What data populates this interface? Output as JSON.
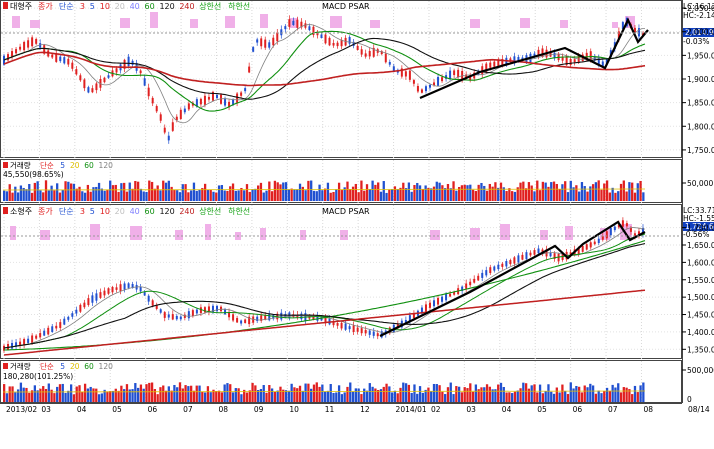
{
  "colors": {
    "red": "#e02020",
    "blue": "#2050d0",
    "pink": "#f0b0e8",
    "ma5": "#ff3030",
    "ma20": "#808080",
    "ma60": "#109010",
    "ma120": "#111111",
    "ma240": "#c02020",
    "trend": "#000000",
    "highlight": "#1040c0"
  },
  "panel1": {
    "legend": {
      "name": "대형주",
      "series": [
        {
          "text": "종가",
          "color": "#e02020"
        },
        {
          "text": "단순",
          "color": "#2050d0"
        },
        {
          "text": "3",
          "color": "#e02020"
        },
        {
          "text": "5",
          "color": "#2050d0"
        },
        {
          "text": "10",
          "color": "#e02020"
        },
        {
          "text": "20",
          "color": "#c0c0c0"
        },
        {
          "text": "40",
          "color": "#8080ff"
        },
        {
          "text": "60",
          "color": "#109010"
        },
        {
          "text": "120",
          "color": "#111111"
        },
        {
          "text": "240",
          "color": "#c02020"
        },
        {
          "text": "상한선",
          "color": "#10a010"
        },
        {
          "text": "하한선",
          "color": "#10a010"
        }
      ],
      "indicator": "MACD PSAR"
    },
    "right": {
      "lc": "LC:16.12",
      "hc": "HC:-2.14",
      "pct": "-0.03%",
      "current": "2,014.9"
    },
    "y_ticks": [
      "2,050.00",
      "2,000.00",
      "1,950.00",
      "1,900.00",
      "1,850.00",
      "1,800.00",
      "1,750.00"
    ],
    "y_range": [
      1735,
      2065
    ]
  },
  "vol1": {
    "legend": {
      "name": "거래량",
      "series": [
        {
          "text": "단순",
          "color": "#e02020"
        },
        {
          "text": "5",
          "color": "#2050d0"
        },
        {
          "text": "20",
          "color": "#e0c000"
        },
        {
          "text": "60",
          "color": "#109010"
        },
        {
          "text": "120",
          "color": "#808080"
        }
      ]
    },
    "value": "45,550(98.65%)",
    "y_ticks": [
      "50,000"
    ]
  },
  "panel2": {
    "legend": {
      "name": "소형주",
      "series": [
        {
          "text": "종가",
          "color": "#e02020"
        },
        {
          "text": "단순",
          "color": "#2050d0"
        },
        {
          "text": "3",
          "color": "#e02020"
        },
        {
          "text": "5",
          "color": "#2050d0"
        },
        {
          "text": "10",
          "color": "#e02020"
        },
        {
          "text": "20",
          "color": "#c0c0c0"
        },
        {
          "text": "40",
          "color": "#8080ff"
        },
        {
          "text": "60",
          "color": "#109010"
        },
        {
          "text": "120",
          "color": "#111111"
        },
        {
          "text": "240",
          "color": "#c02020"
        },
        {
          "text": "상한선",
          "color": "#10a010"
        },
        {
          "text": "하한선",
          "color": "#10a010"
        }
      ],
      "indicator": "MACD PSAR"
    },
    "right": {
      "lc": "LC:33.71",
      "hc": "HC:-1.55",
      "pct": "-0.56%",
      "current": "1,724.6"
    },
    "y_ticks": [
      "1,700.00",
      "1,650.00",
      "1,600.00",
      "1,550.00",
      "1,500.00",
      "1,450.00",
      "1,400.00",
      "1,350.00"
    ],
    "y_range": [
      1325,
      1765
    ]
  },
  "vol2": {
    "legend": {
      "name": "거래량",
      "series": [
        {
          "text": "단순",
          "color": "#e02020"
        },
        {
          "text": "5",
          "color": "#2050d0"
        },
        {
          "text": "20",
          "color": "#e0c000"
        },
        {
          "text": "60",
          "color": "#109010"
        },
        {
          "text": "120",
          "color": "#808080"
        }
      ]
    },
    "value": "180,280(101.25%)",
    "y_ticks": [
      "500,000",
      "0"
    ]
  },
  "x_axis": {
    "labels": [
      "2013/02",
      "03",
      "04",
      "05",
      "06",
      "07",
      "08",
      "09",
      "10",
      "11",
      "12",
      "2014/01",
      "02",
      "03",
      "04",
      "05",
      "06",
      "07",
      "08"
    ],
    "right_label": "08/14"
  }
}
